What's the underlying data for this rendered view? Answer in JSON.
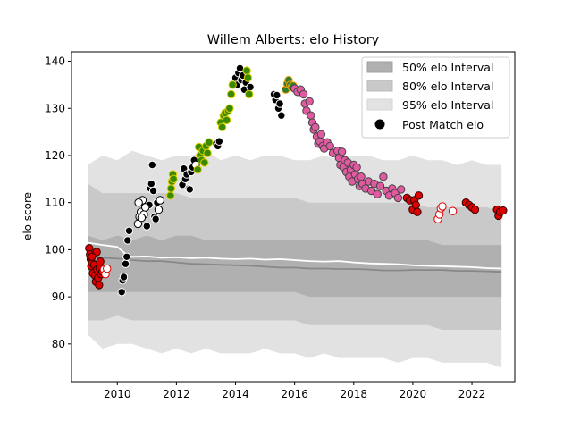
{
  "chart_data": {
    "type": "scatter",
    "title": "Willem Alberts: elo History",
    "xlabel": "",
    "ylabel": "elo score",
    "xlim": [
      2008.45,
      2023.45
    ],
    "ylim": [
      72,
      142
    ],
    "xticks": [
      2010,
      2012,
      2014,
      2016,
      2018,
      2020,
      2022
    ],
    "yticks": [
      80,
      90,
      100,
      110,
      120,
      130,
      140
    ],
    "legend_position": "top-right",
    "legend": [
      {
        "label": "50% elo Interval",
        "kind": "band",
        "color": "#b0b0b0"
      },
      {
        "label": "80% elo Interval",
        "kind": "band",
        "color": "#c9c9c9"
      },
      {
        "label": "95% elo Interval",
        "kind": "band",
        "color": "#e2e2e2"
      },
      {
        "label": "Post Match elo",
        "kind": "marker",
        "color": "#000000"
      }
    ],
    "bands": {
      "x": [
        2009.0,
        2009.5,
        2010.0,
        2010.5,
        2011.0,
        2011.5,
        2012.0,
        2012.5,
        2013.0,
        2013.5,
        2014.0,
        2014.5,
        2015.0,
        2015.5,
        2016.0,
        2016.5,
        2017.0,
        2017.5,
        2018.0,
        2018.5,
        2019.0,
        2019.5,
        2020.0,
        2020.5,
        2021.0,
        2021.5,
        2022.0,
        2022.5,
        2023.0
      ],
      "p95_low": [
        82,
        79,
        80,
        80,
        79,
        78,
        79,
        78,
        79,
        78,
        78,
        78,
        79,
        78,
        78,
        77,
        78,
        77,
        77,
        77,
        77,
        76,
        77,
        77,
        76,
        76,
        76,
        76,
        75
      ],
      "p95_high": [
        118,
        120,
        119,
        121,
        120,
        119,
        120,
        120,
        121,
        119,
        120,
        119,
        120,
        120,
        119,
        119,
        120,
        119,
        120,
        120,
        119,
        119,
        120,
        119,
        119,
        118,
        119,
        118,
        118
      ],
      "p80_low": [
        85,
        85,
        86,
        85,
        85,
        85,
        85,
        85,
        85,
        85,
        85,
        85,
        85,
        85,
        85,
        84,
        84,
        84,
        84,
        84,
        84,
        84,
        84,
        84,
        83,
        83,
        83,
        83,
        83
      ],
      "p80_high": [
        114,
        112,
        112,
        112,
        112,
        112,
        112,
        111,
        111,
        111,
        111,
        111,
        111,
        111,
        111,
        110,
        110,
        110,
        110,
        110,
        110,
        110,
        110,
        109,
        109,
        109,
        109,
        109,
        108
      ],
      "p50_low": [
        91,
        91,
        91,
        91,
        91,
        91,
        91,
        91,
        91,
        91,
        91,
        91,
        91,
        91,
        91,
        90,
        90,
        90,
        90,
        90,
        90,
        90,
        90,
        90,
        90,
        90,
        90,
        90,
        90
      ],
      "p50_high": [
        103,
        102,
        103,
        102,
        103,
        102,
        103,
        103,
        102,
        102,
        102,
        102,
        102,
        102,
        102,
        102,
        102,
        102,
        102,
        102,
        102,
        102,
        102,
        102,
        101,
        101,
        101,
        101,
        101
      ]
    },
    "median_lines": {
      "x": [
        2009.0,
        2009.5,
        2010.0,
        2010.3,
        2010.5,
        2011.0,
        2011.5,
        2012.0,
        2012.5,
        2013.0,
        2013.5,
        2014.0,
        2014.5,
        2015.0,
        2015.5,
        2016.0,
        2016.5,
        2017.0,
        2017.5,
        2018.0,
        2018.5,
        2019.0,
        2019.5,
        2020.0,
        2020.5,
        2021.0,
        2021.5,
        2022.0,
        2022.5,
        2023.0
      ],
      "white": [
        101.5,
        101,
        100.6,
        99,
        98.5,
        98.6,
        98.3,
        98.4,
        98.2,
        98.3,
        98.1,
        98.0,
        98.1,
        97.9,
        98.0,
        97.8,
        97.6,
        97.5,
        97.6,
        97.3,
        97.1,
        97.0,
        96.9,
        96.7,
        96.6,
        96.5,
        96.4,
        96.3,
        96.1,
        96.0
      ],
      "gray": [
        98.5,
        98.3,
        98.1,
        98.0,
        97.8,
        97.6,
        97.6,
        97.3,
        97.0,
        96.9,
        96.8,
        96.7,
        96.6,
        96.4,
        96.2,
        96.2,
        96.0,
        96.0,
        95.9,
        95.9,
        95.8,
        95.6,
        95.6,
        95.7,
        95.7,
        95.7,
        95.5,
        95.5,
        95.4,
        95.3
      ]
    },
    "series": [
      {
        "style": "red",
        "fill": "#dd0000",
        "stroke": "#330000",
        "points": [
          [
            2009.05,
            100.3
          ],
          [
            2009.1,
            98.0
          ],
          [
            2009.12,
            96.5
          ],
          [
            2009.15,
            97.2
          ],
          [
            2009.18,
            95.0
          ],
          [
            2009.22,
            96.8
          ],
          [
            2009.25,
            94.5
          ],
          [
            2009.28,
            93.2
          ],
          [
            2009.3,
            99.5
          ],
          [
            2009.32,
            95.8
          ],
          [
            2009.35,
            94.0
          ],
          [
            2009.38,
            92.5
          ],
          [
            2009.4,
            96.1
          ],
          [
            2009.42,
            97.5
          ],
          [
            2009.45,
            94.8
          ],
          [
            2009.5,
            95.3
          ],
          [
            2009.08,
            99.0
          ],
          [
            2009.14,
            98.5
          ]
        ]
      },
      {
        "style": "open-red",
        "fill": "#ffffff",
        "stroke": "#dd0000",
        "points": [
          [
            2009.55,
            95.8
          ],
          [
            2009.6,
            94.8
          ],
          [
            2009.65,
            96.0
          ]
        ]
      },
      {
        "style": "black",
        "fill": "#000000",
        "stroke": "#ffffff",
        "points": [
          [
            2010.15,
            91.0
          ],
          [
            2010.18,
            93.5
          ],
          [
            2010.22,
            94.2
          ],
          [
            2010.28,
            97.0
          ],
          [
            2010.32,
            98.5
          ],
          [
            2010.35,
            102.0
          ],
          [
            2010.4,
            104.0
          ],
          [
            2011.0,
            105.0
          ],
          [
            2011.08,
            109.5
          ],
          [
            2011.12,
            113.0
          ],
          [
            2011.15,
            114.0
          ],
          [
            2011.18,
            118.0
          ],
          [
            2011.22,
            112.5
          ],
          [
            2011.26,
            107.0
          ],
          [
            2011.3,
            106.5
          ],
          [
            2011.35,
            110.0
          ],
          [
            2012.2,
            113.8
          ],
          [
            2012.25,
            117.2
          ],
          [
            2012.3,
            115.0
          ],
          [
            2012.35,
            116.0
          ],
          [
            2012.42,
            113.0
          ],
          [
            2012.45,
            112.8
          ],
          [
            2012.5,
            116.5
          ],
          [
            2012.55,
            117.5
          ],
          [
            2012.6,
            119.0
          ],
          [
            2013.35,
            122.5
          ],
          [
            2013.4,
            122.0
          ],
          [
            2013.45,
            123.0
          ],
          [
            2014.0,
            136.5
          ],
          [
            2014.05,
            135.0
          ],
          [
            2014.1,
            137.5
          ],
          [
            2014.15,
            138.5
          ],
          [
            2014.2,
            136.0
          ],
          [
            2014.25,
            137.0
          ],
          [
            2014.3,
            134.0
          ],
          [
            2014.35,
            135.5
          ],
          [
            2014.4,
            137.8
          ],
          [
            2014.45,
            133.0
          ],
          [
            2014.5,
            134.5
          ],
          [
            2015.3,
            133.0
          ],
          [
            2015.35,
            131.8
          ],
          [
            2015.4,
            132.8
          ],
          [
            2015.45,
            130.0
          ],
          [
            2015.5,
            131.0
          ],
          [
            2015.55,
            128.5
          ]
        ]
      },
      {
        "style": "open-black",
        "fill": "#ffffff",
        "stroke": "#000000",
        "points": [
          [
            2010.7,
            105.5
          ],
          [
            2010.75,
            107.0
          ],
          [
            2010.8,
            108.0
          ],
          [
            2010.85,
            110.5
          ],
          [
            2010.9,
            107.5
          ],
          [
            2010.95,
            109.0
          ],
          [
            2010.72,
            110.0
          ],
          [
            2010.82,
            106.8
          ],
          [
            2011.4,
            108.5
          ],
          [
            2011.45,
            110.5
          ],
          [
            2012.65,
            118.0
          ]
        ]
      },
      {
        "style": "green",
        "fill": "#3a8a00",
        "stroke": "#e0d000",
        "points": [
          [
            2011.8,
            111.5
          ],
          [
            2011.82,
            113.0
          ],
          [
            2011.85,
            114.5
          ],
          [
            2011.88,
            116.0
          ],
          [
            2011.9,
            115.0
          ],
          [
            2012.72,
            117.0
          ],
          [
            2012.76,
            121.8
          ],
          [
            2012.8,
            120.0
          ],
          [
            2012.85,
            119.0
          ],
          [
            2012.9,
            121.0
          ],
          [
            2012.95,
            118.5
          ],
          [
            2013.0,
            122.0
          ],
          [
            2013.05,
            120.5
          ],
          [
            2013.1,
            122.8
          ],
          [
            2013.5,
            127.0
          ],
          [
            2013.55,
            126.0
          ],
          [
            2013.6,
            128.5
          ],
          [
            2013.65,
            129.0
          ],
          [
            2013.7,
            127.5
          ],
          [
            2013.75,
            129.5
          ],
          [
            2013.8,
            130.0
          ],
          [
            2013.85,
            133.0
          ],
          [
            2013.9,
            135.0
          ],
          [
            2014.38,
            138.0
          ],
          [
            2014.42,
            136.5
          ],
          [
            2014.46,
            133.0
          ]
        ]
      },
      {
        "style": "orange",
        "fill": "#2e7d32",
        "stroke": "#ffa000",
        "points": [
          [
            2015.7,
            134.0
          ],
          [
            2015.75,
            135.2
          ],
          [
            2015.8,
            136.0
          ],
          [
            2015.85,
            135.0
          ],
          [
            2015.9,
            134.5
          ],
          [
            2015.95,
            134.8
          ]
        ]
      },
      {
        "style": "pink",
        "fill": "#e05aa0",
        "stroke": "#444444",
        "points": [
          [
            2016.0,
            134.2
          ],
          [
            2016.1,
            133.5
          ],
          [
            2016.2,
            134.0
          ],
          [
            2016.3,
            133.0
          ],
          [
            2016.35,
            131.0
          ],
          [
            2016.4,
            129.5
          ],
          [
            2016.5,
            131.5
          ],
          [
            2016.55,
            128.5
          ],
          [
            2016.6,
            127.0
          ],
          [
            2016.65,
            125.5
          ],
          [
            2016.7,
            126.0
          ],
          [
            2016.75,
            124.0
          ],
          [
            2016.8,
            122.5
          ],
          [
            2016.85,
            123.0
          ],
          [
            2016.9,
            124.5
          ],
          [
            2016.95,
            122.0
          ],
          [
            2017.0,
            121.5
          ],
          [
            2017.1,
            122.8
          ],
          [
            2017.2,
            122.0
          ],
          [
            2017.3,
            120.5
          ],
          [
            2017.45,
            121.0
          ],
          [
            2017.5,
            119.5
          ],
          [
            2017.55,
            118.0
          ],
          [
            2017.6,
            120.8
          ],
          [
            2017.65,
            117.5
          ],
          [
            2017.7,
            119.0
          ],
          [
            2017.75,
            116.5
          ],
          [
            2017.8,
            118.5
          ],
          [
            2017.85,
            115.5
          ],
          [
            2017.9,
            117.0
          ],
          [
            2017.95,
            114.5
          ],
          [
            2018.0,
            118.0
          ],
          [
            2018.05,
            116.0
          ],
          [
            2018.1,
            117.5
          ],
          [
            2018.15,
            115.0
          ],
          [
            2018.2,
            113.5
          ],
          [
            2018.25,
            115.5
          ],
          [
            2018.3,
            114.0
          ],
          [
            2018.4,
            113.0
          ],
          [
            2018.5,
            114.5
          ],
          [
            2018.6,
            112.5
          ],
          [
            2018.7,
            114.0
          ],
          [
            2018.8,
            111.8
          ],
          [
            2018.9,
            113.5
          ],
          [
            2019.0,
            115.5
          ],
          [
            2019.1,
            112.5
          ],
          [
            2019.2,
            111.5
          ],
          [
            2019.3,
            113.0
          ],
          [
            2019.4,
            112.0
          ],
          [
            2019.5,
            111.0
          ],
          [
            2019.6,
            112.8
          ]
        ]
      },
      {
        "style": "red",
        "fill": "#dd0000",
        "stroke": "#330000",
        "points": [
          [
            2019.8,
            111.0
          ],
          [
            2019.9,
            110.5
          ],
          [
            2020.0,
            108.5
          ],
          [
            2020.05,
            110.5
          ],
          [
            2020.1,
            109.5
          ],
          [
            2020.15,
            108.0
          ],
          [
            2020.2,
            111.5
          ],
          [
            2021.8,
            110.0
          ],
          [
            2021.9,
            109.5
          ],
          [
            2022.0,
            109.0
          ],
          [
            2022.1,
            108.5
          ],
          [
            2022.85,
            108.5
          ],
          [
            2022.9,
            107.2
          ],
          [
            2022.95,
            108.0
          ],
          [
            2023.05,
            108.3
          ]
        ]
      },
      {
        "style": "open-red",
        "fill": "#ffffff",
        "stroke": "#dd0000",
        "points": [
          [
            2020.85,
            106.5
          ],
          [
            2020.9,
            107.5
          ],
          [
            2020.95,
            108.8
          ],
          [
            2021.0,
            109.2
          ],
          [
            2021.35,
            108.2
          ]
        ]
      }
    ]
  }
}
